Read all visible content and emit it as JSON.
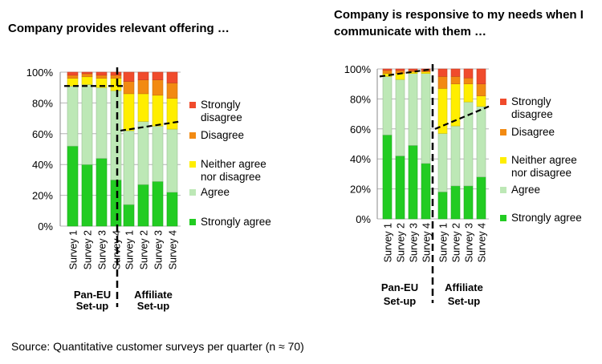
{
  "colors": {
    "strongly_disagree": "#f04b2c",
    "disagree": "#f28a12",
    "neutral": "#ffee00",
    "agree": "#bde8b6",
    "strongly_agree": "#22cc22",
    "grid": "#b4b4b4",
    "background": "#ffffff"
  },
  "source": "Source: Quantitative customer surveys per quarter (n ≈ 70)",
  "chart_data": [
    {
      "type": "bar",
      "stacked": true,
      "title": "Company provides relevant offering …",
      "categories": [
        "Survey 1",
        "Survey 2",
        "Survey 3",
        "Survey 4",
        "Survey 1",
        "Survey 2",
        "Survey 3",
        "Survey 4"
      ],
      "groups": [
        {
          "label": "Pan-EU Set-up",
          "count": 4
        },
        {
          "label": "Affiliate Set-up",
          "count": 4
        }
      ],
      "y_ticks": [
        "0%",
        "20%",
        "40%",
        "60%",
        "80%",
        "100%"
      ],
      "ylim": [
        0,
        100
      ],
      "grid": true,
      "legend_position": "right",
      "series": [
        {
          "name": "Strongly agree",
          "color_key": "strongly_agree",
          "values": [
            52,
            40,
            44,
            30,
            14,
            27,
            29,
            22
          ]
        },
        {
          "name": "Agree",
          "color_key": "agree",
          "values": [
            39,
            52,
            46,
            58,
            48,
            41,
            36,
            41
          ]
        },
        {
          "name": "Neither agree nor disagree",
          "color_key": "neutral",
          "values": [
            5,
            5,
            6,
            8,
            24,
            18,
            20,
            20
          ]
        },
        {
          "name": "Disagree",
          "color_key": "disagree",
          "values": [
            2,
            2,
            2,
            2,
            8,
            9,
            10,
            10
          ]
        },
        {
          "name": "Strongly disagree",
          "color_key": "strongly_disagree",
          "values": [
            2,
            1,
            2,
            2,
            6,
            5,
            5,
            7
          ]
        }
      ],
      "trend_lines": [
        {
          "from_index": 0,
          "to_index": 3,
          "values": [
            91,
            91
          ]
        },
        {
          "from_index": 4,
          "to_index": 7,
          "values": [
            62,
            68
          ]
        }
      ]
    },
    {
      "type": "bar",
      "stacked": true,
      "title": "Company is responsive to my needs when I communicate with them …",
      "categories": [
        "Survey 1",
        "Survey 2",
        "Survey 3",
        "Survey 4",
        "Survey 1",
        "Survey 2",
        "Survey 3",
        "Survey 4"
      ],
      "groups": [
        {
          "label": "Pan-EU Set-up",
          "count": 4
        },
        {
          "label": "Affiliate Set-up",
          "count": 4
        }
      ],
      "y_ticks": [
        "0%",
        "20%",
        "40%",
        "60%",
        "80%",
        "100%"
      ],
      "ylim": [
        0,
        100
      ],
      "grid": true,
      "legend_position": "right",
      "series": [
        {
          "name": "Strongly agree",
          "color_key": "strongly_agree",
          "values": [
            56,
            42,
            49,
            37,
            18,
            22,
            22,
            28
          ]
        },
        {
          "name": "Agree",
          "color_key": "agree",
          "values": [
            39,
            51,
            48,
            60,
            39,
            40,
            56,
            47
          ]
        },
        {
          "name": "Neither agree nor disagree",
          "color_key": "neutral",
          "values": [
            2,
            4,
            1,
            1,
            30,
            28,
            12,
            7
          ]
        },
        {
          "name": "Disagree",
          "color_key": "disagree",
          "values": [
            2,
            2,
            1,
            1,
            8,
            5,
            4,
            8
          ]
        },
        {
          "name": "Strongly disagree",
          "color_key": "strongly_disagree",
          "values": [
            1,
            1,
            1,
            1,
            5,
            5,
            6,
            10
          ]
        }
      ],
      "trend_lines": [
        {
          "from_index": 0,
          "to_index": 3,
          "values": [
            95,
            100
          ]
        },
        {
          "from_index": 4,
          "to_index": 7,
          "values": [
            60,
            75
          ]
        }
      ]
    }
  ]
}
